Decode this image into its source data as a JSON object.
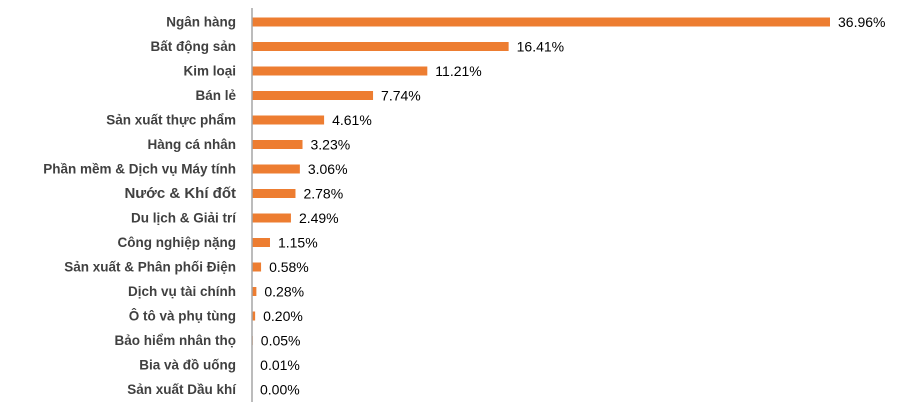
{
  "chart_data": {
    "type": "bar",
    "orientation": "horizontal",
    "title": "",
    "xlabel": "",
    "ylabel": "",
    "grid": false,
    "legend": "none",
    "xlim": [
      0,
      37
    ],
    "bar_color": "#ED7D31",
    "axis_color": "#A6A6A6",
    "label_color": "#404040",
    "categories": [
      "Ngân hàng",
      "Bất động sản",
      "Kim loại",
      "Bán lẻ",
      "Sản xuất thực phẩm",
      "Hàng cá nhân",
      "Phần mềm & Dịch vụ Máy tính",
      "Nước & Khí đốt",
      "Du lịch & Giải trí",
      "Công nghiệp nặng",
      "Sản xuất & Phân phối Điện",
      "Dịch vụ tài chính",
      "Ô tô và phụ tùng",
      "Bảo hiểm nhân thọ",
      "Bia và đồ uống",
      "Sản xuất Dầu khí"
    ],
    "values": [
      36.96,
      16.41,
      11.21,
      7.74,
      4.61,
      3.23,
      3.06,
      2.78,
      2.49,
      1.15,
      0.58,
      0.28,
      0.2,
      0.05,
      0.01,
      0.0
    ],
    "value_labels": [
      "36.96%",
      "16.41%",
      "11.21%",
      "7.74%",
      "4.61%",
      "3.23%",
      "3.06%",
      "2.78%",
      "2.49%",
      "1.15%",
      "0.58%",
      "0.28%",
      "0.20%",
      "0.05%",
      "0.01%",
      "0.00%"
    ]
  }
}
